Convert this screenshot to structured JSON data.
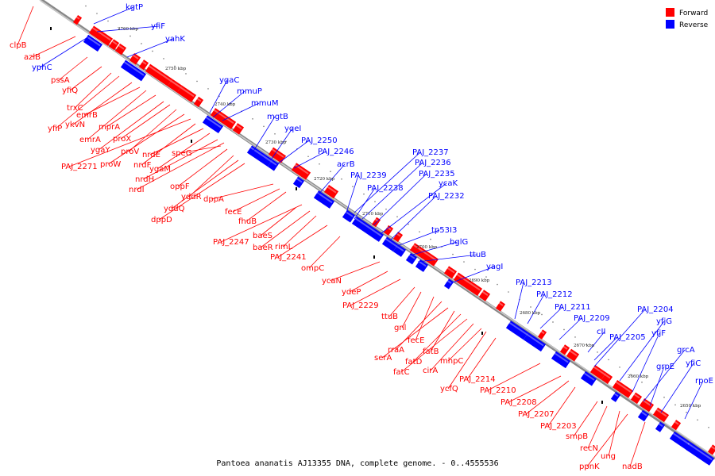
{
  "caption": "Pantoea ananatis AJ13355 DNA, complete genome. - 0..4555536",
  "legend": {
    "forward": "Forward",
    "reverse": "Reverse"
  },
  "colors": {
    "forward": "#ff0000",
    "reverse": "#0000ff"
  },
  "ticks": [
    "2760 kbp",
    "2750 kbp",
    "2740 kbp",
    "2730 kbp",
    "2720 kbp",
    "2710 kbp",
    "2700 kbp",
    "2690 kbp",
    "2680 kbp",
    "2670 kbp",
    "2660 kbp",
    "2650 kbp"
  ],
  "forward_labels": [
    "clpB",
    "azlB",
    "pssA",
    "yfiQ",
    "trxC",
    "yfiP",
    "ykvN",
    "emrB",
    "emrA",
    "mprA",
    "ygaY",
    "proX",
    "proV",
    "proW",
    "PAJ_2271",
    "nrdF",
    "nrdE",
    "ygaM",
    "nrdH",
    "nrdI",
    "speG",
    "oppF",
    "yddR",
    "yddQ",
    "dppD",
    "dppA",
    "fecE",
    "fhuB",
    "PAJ_2247",
    "baeS",
    "baeR",
    "rimL",
    "PAJ_2241",
    "ompC",
    "ycaN",
    "ydeP",
    "PAJ_2229",
    "ttuB",
    "gnl",
    "fecE",
    "rraA",
    "serA",
    "fatB",
    "fatD",
    "fatC",
    "cirA",
    "mhpC",
    "ycfQ",
    "PAJ_2214",
    "PAJ_2210",
    "PAJ_2208",
    "PAJ_2207",
    "PAJ_2203",
    "smpB",
    "recN",
    "ung",
    "ppnK",
    "nadB"
  ],
  "reverse_labels": [
    "kgtP",
    "yfiF",
    "yphC",
    "yahK",
    "ygaC",
    "mmuP",
    "mmuM",
    "mgtB",
    "yqeI",
    "PAJ_2250",
    "PAJ_2246",
    "acrB",
    "PAJ_2239",
    "PAJ_2238",
    "PAJ_2237",
    "PAJ_2236",
    "PAJ_2235",
    "ycaK",
    "PAJ_2232",
    "tp53I3",
    "bglG",
    "ttuB",
    "yagI",
    "PAJ_2213",
    "PAJ_2212",
    "PAJ_2211",
    "PAJ_2209",
    "cII",
    "PAJ_2205",
    "PAJ_2204",
    "yfjG",
    "yfjF",
    "grcA",
    "grpE",
    "yfiC",
    "rpoE"
  ]
}
